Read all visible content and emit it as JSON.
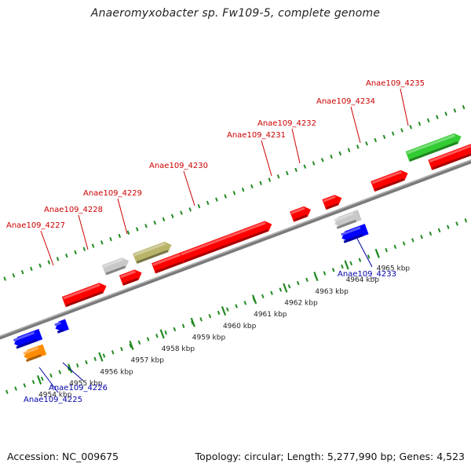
{
  "title": "Anaeromyxobacter sp. Fw109-5, complete genome",
  "footer": {
    "accession": "Accession: NC_009675",
    "topology": "Topology: circular; Length: 5,277,990 bp; Genes: 4,523"
  },
  "colors": {
    "forward_label": "#cc0000",
    "reverse_label": "#0000aa",
    "tick": "#228b22",
    "backbone": "#7a7a7a",
    "red": "#ff0000",
    "blue": "#0000ff",
    "gray": "#c8c8c8",
    "olive": "#b8b46a",
    "green": "#33cc33",
    "orange": "#ff8c00"
  },
  "scale": {
    "unit": "kbp",
    "ticks": [
      {
        "kbp": 4954,
        "label": "4954 kbp"
      },
      {
        "kbp": 4955,
        "label": "4955 kbp"
      },
      {
        "kbp": 4956,
        "label": "4956 kbp"
      },
      {
        "kbp": 4957,
        "label": "4957 kbp"
      },
      {
        "kbp": 4958,
        "label": "4958 kbp"
      },
      {
        "kbp": 4959,
        "label": "4959 kbp"
      },
      {
        "kbp": 4960,
        "label": "4960 kbp"
      },
      {
        "kbp": 4961,
        "label": "4961 kbp"
      },
      {
        "kbp": 4962,
        "label": "4962 kbp"
      },
      {
        "kbp": 4963,
        "label": "4963 kbp"
      },
      {
        "kbp": 4964,
        "label": "4964 kbp"
      },
      {
        "kbp": 4965,
        "label": "4965 kbp"
      }
    ]
  },
  "genes": [
    {
      "name": "Anae109_4225",
      "strand": "reverse",
      "color": "blue"
    },
    {
      "name": "Anae109_4226",
      "strand": "reverse",
      "color": "orange"
    },
    {
      "name": "Anae109_4227",
      "strand": "forward",
      "color": "red"
    },
    {
      "name": "Anae109_4228",
      "strand": "forward",
      "color": "gray"
    },
    {
      "name": "Anae109_4229",
      "strand": "forward",
      "color": "olive"
    },
    {
      "name": "Anae109_4230",
      "strand": "forward",
      "color": "red"
    },
    {
      "name": "Anae109_4231",
      "strand": "forward",
      "color": "red"
    },
    {
      "name": "Anae109_4232",
      "strand": "forward",
      "color": "red"
    },
    {
      "name": "Anae109_4233",
      "strand": "reverse",
      "color": "gray"
    },
    {
      "name": "Anae109_4234",
      "strand": "forward",
      "color": "red"
    },
    {
      "name": "Anae109_4235",
      "strand": "forward",
      "color": "green"
    }
  ]
}
